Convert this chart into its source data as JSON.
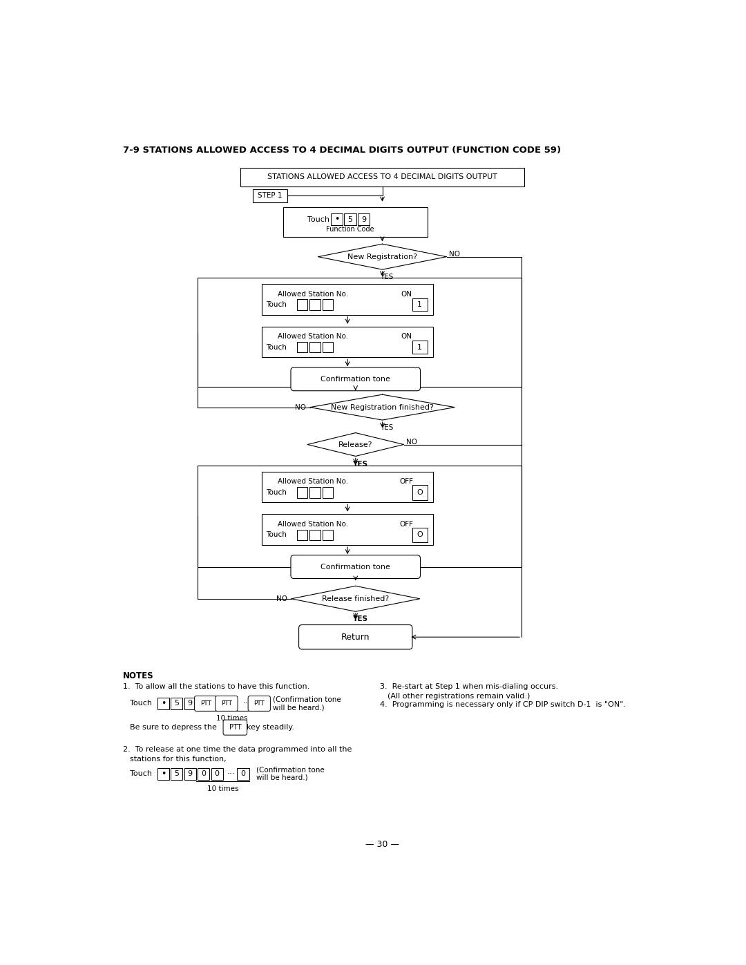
{
  "title": "7-9 STATIONS ALLOWED ACCESS TO 4 DECIMAL DIGITS OUTPUT (FUNCTION CODE 59)",
  "page_number": "— 30 —",
  "bg_color": "#ffffff",
  "flowchart": {
    "top_box": "STATIONS ALLOWED ACCESS TO 4 DECIMAL DIGITS OUTPUT",
    "step1": "STEP 1",
    "new_reg_q": "New Registration?",
    "conf_tone1": "Confirmation tone",
    "new_reg_fin_q": "New Registration finished?",
    "release_q": "Release?",
    "conf_tone2": "Confirmation tone",
    "release_fin_q": "Release finished?",
    "return_box": "Return"
  },
  "notes": {
    "header": "NOTES",
    "note1_line1": "1.  To allow all the stations to have this function.",
    "note1_conf": "(Confirmation tone\nwill be heard.)",
    "note1_10times": "10 times",
    "note1_ptt1": "Be sure to depress the",
    "note1_ptt2": "key steadily.",
    "note2_line1": "2.  To release at one time the data programmed into all the",
    "note2_line2": "stations for this function,",
    "note2_conf": "(Confirmation tone\nwill be heard.)",
    "note2_10times": "10 times",
    "note3_line1": "3.  Re-start at Step 1 when mis-dialing occurs.",
    "note3_line2": "(All other registrations remain valid.)",
    "note4_line1": "4.  Programming is necessary only if CP DIP switch D-1  is \"ON\"."
  }
}
